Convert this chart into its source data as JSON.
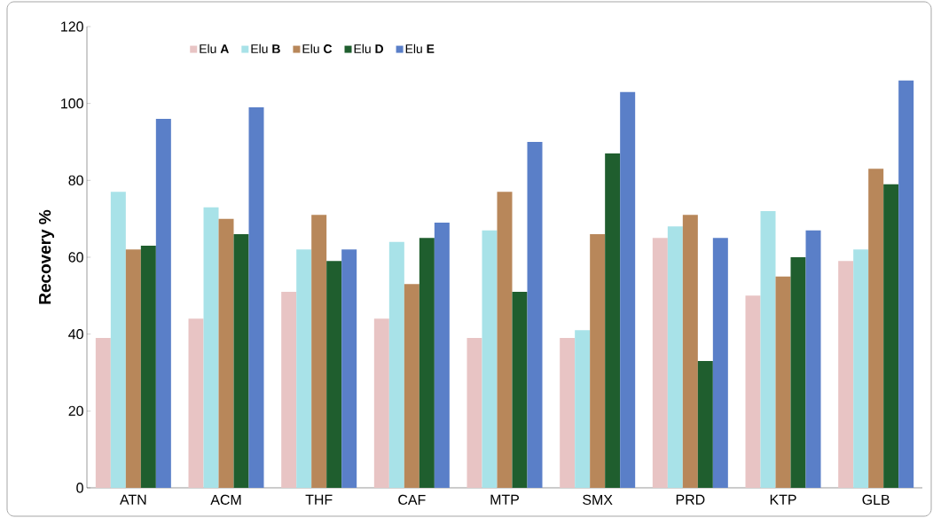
{
  "chart_data": {
    "type": "bar",
    "ylabel": "Recovery %",
    "categories": [
      "ATN",
      "ACM",
      "THF",
      "CAF",
      "MTP",
      "SMX",
      "PRD",
      "KTP",
      "GLB"
    ],
    "series": [
      {
        "name": "Elu **A**",
        "color": "#e8c4c4",
        "values": [
          39,
          44,
          51,
          44,
          39,
          39,
          65,
          50,
          59
        ]
      },
      {
        "name": "Elu **B**",
        "color": "#a8e2e8",
        "values": [
          77,
          73,
          62,
          64,
          67,
          41,
          68,
          72,
          62
        ]
      },
      {
        "name": "Elu **C**",
        "color": "#b8875a",
        "values": [
          62,
          70,
          71,
          53,
          77,
          66,
          71,
          55,
          83
        ]
      },
      {
        "name": "Elu **D**",
        "color": "#1f5e2e",
        "values": [
          63,
          66,
          59,
          65,
          51,
          87,
          33,
          60,
          79
        ]
      },
      {
        "name": "Elu **E**",
        "color": "#5a7fc8",
        "values": [
          96,
          99,
          62,
          69,
          90,
          103,
          65,
          67,
          106
        ]
      }
    ],
    "ylim": [
      0,
      120
    ],
    "yticks": [
      0,
      20,
      40,
      60,
      80,
      100,
      120
    ],
    "grid": false,
    "legend": "top left"
  }
}
